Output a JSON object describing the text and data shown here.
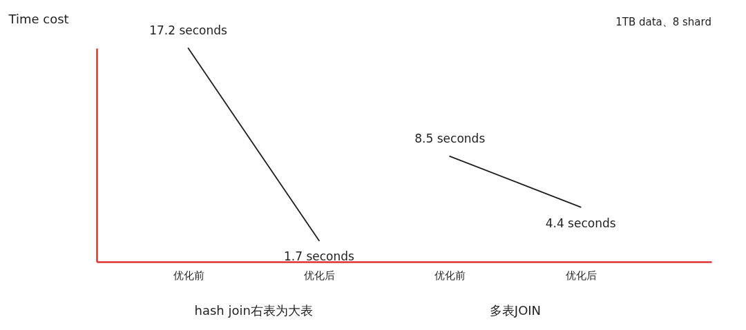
{
  "chart_data": {
    "type": "line",
    "ylabel": "Time cost",
    "annotations": [
      "1TB data、8 shard",
      "hash join右表为大表",
      "多表JOIN"
    ],
    "categories": [
      "优化前",
      "优化后",
      "优化前",
      "优化后"
    ],
    "series": [
      {
        "color": "#1e1e1e",
        "values": [
          17.2,
          1.7,
          null,
          null
        ],
        "value_labels": [
          "17.2 seconds",
          "1.7 seconds",
          null,
          null
        ]
      },
      {
        "color": "#1e1e1e",
        "values": [
          null,
          null,
          8.5,
          4.4
        ],
        "value_labels": [
          null,
          null,
          "8.5 seconds",
          "4.4 seconds"
        ]
      }
    ],
    "tick_labels": "x",
    "line_style": "solid"
  }
}
